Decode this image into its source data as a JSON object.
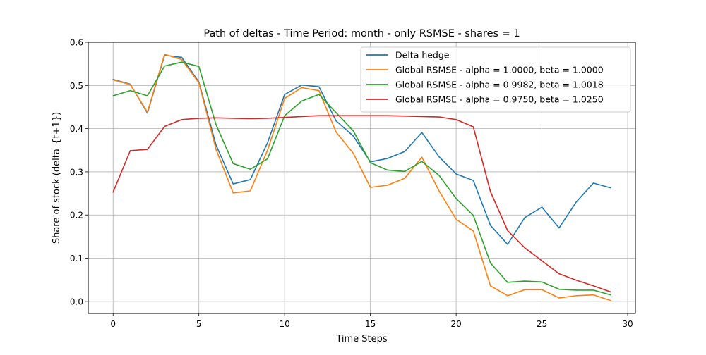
{
  "chart_data": {
    "type": "line",
    "title": "Path of deltas - Time Period: month - only RSMSE - shares = 1",
    "xlabel": "Time Steps",
    "ylabel": "Share of stock (delta_{t+1})",
    "xlim": [
      -1.45,
      30.45
    ],
    "ylim": [
      -0.028,
      0.6
    ],
    "xticks": [
      0,
      5,
      10,
      15,
      20,
      25,
      30
    ],
    "yticks": [
      0.0,
      0.1,
      0.2,
      0.3,
      0.4,
      0.5,
      0.6
    ],
    "xtick_labels": [
      "0",
      "5",
      "10",
      "15",
      "20",
      "25",
      "30"
    ],
    "ytick_labels": [
      "0.0",
      "0.1",
      "0.2",
      "0.3",
      "0.4",
      "0.5",
      "0.6"
    ],
    "grid": true,
    "legend_position": "top-right",
    "x": [
      0,
      1,
      2,
      3,
      4,
      5,
      6,
      7,
      8,
      9,
      10,
      11,
      12,
      13,
      14,
      15,
      16,
      17,
      18,
      19,
      20,
      21,
      22,
      23,
      24,
      25,
      26,
      27,
      28,
      29
    ],
    "series": [
      {
        "name": "Delta hedge",
        "color": "#1f77b4",
        "values": [
          0.514,
          0.503,
          0.436,
          0.57,
          0.565,
          0.508,
          0.362,
          0.272,
          0.282,
          0.367,
          0.479,
          0.501,
          0.497,
          0.418,
          0.383,
          0.323,
          0.331,
          0.347,
          0.391,
          0.335,
          0.295,
          0.28,
          0.176,
          0.132,
          0.194,
          0.218,
          0.17,
          0.23,
          0.274,
          0.263
        ]
      },
      {
        "name": "Global RSMSE - alpha = 1.0000, beta = 1.0000",
        "color": "#ff7f0e",
        "values": [
          0.513,
          0.502,
          0.438,
          0.572,
          0.56,
          0.506,
          0.352,
          0.251,
          0.256,
          0.35,
          0.47,
          0.495,
          0.488,
          0.392,
          0.343,
          0.264,
          0.269,
          0.285,
          0.334,
          0.256,
          0.19,
          0.163,
          0.036,
          0.013,
          0.027,
          0.027,
          0.008,
          0.013,
          0.015,
          0.002
        ]
      },
      {
        "name": "Global RSMSE - alpha = 0.9982, beta = 1.0018",
        "color": "#2ca02c",
        "values": [
          0.476,
          0.488,
          0.476,
          0.545,
          0.554,
          0.544,
          0.409,
          0.319,
          0.306,
          0.33,
          0.43,
          0.464,
          0.479,
          0.437,
          0.395,
          0.321,
          0.304,
          0.301,
          0.324,
          0.292,
          0.238,
          0.199,
          0.089,
          0.044,
          0.047,
          0.045,
          0.028,
          0.026,
          0.026,
          0.015
        ]
      },
      {
        "name": "Global RSMSE - alpha = 0.9750, beta = 1.0250",
        "color": "#d62728",
        "values": [
          0.253,
          0.349,
          0.352,
          0.405,
          0.421,
          0.424,
          0.425,
          0.424,
          0.423,
          0.424,
          0.426,
          0.428,
          0.43,
          0.43,
          0.43,
          0.43,
          0.43,
          0.429,
          0.428,
          0.427,
          0.421,
          0.404,
          0.254,
          0.164,
          0.124,
          0.094,
          0.064,
          0.049,
          0.036,
          0.022
        ]
      }
    ]
  }
}
